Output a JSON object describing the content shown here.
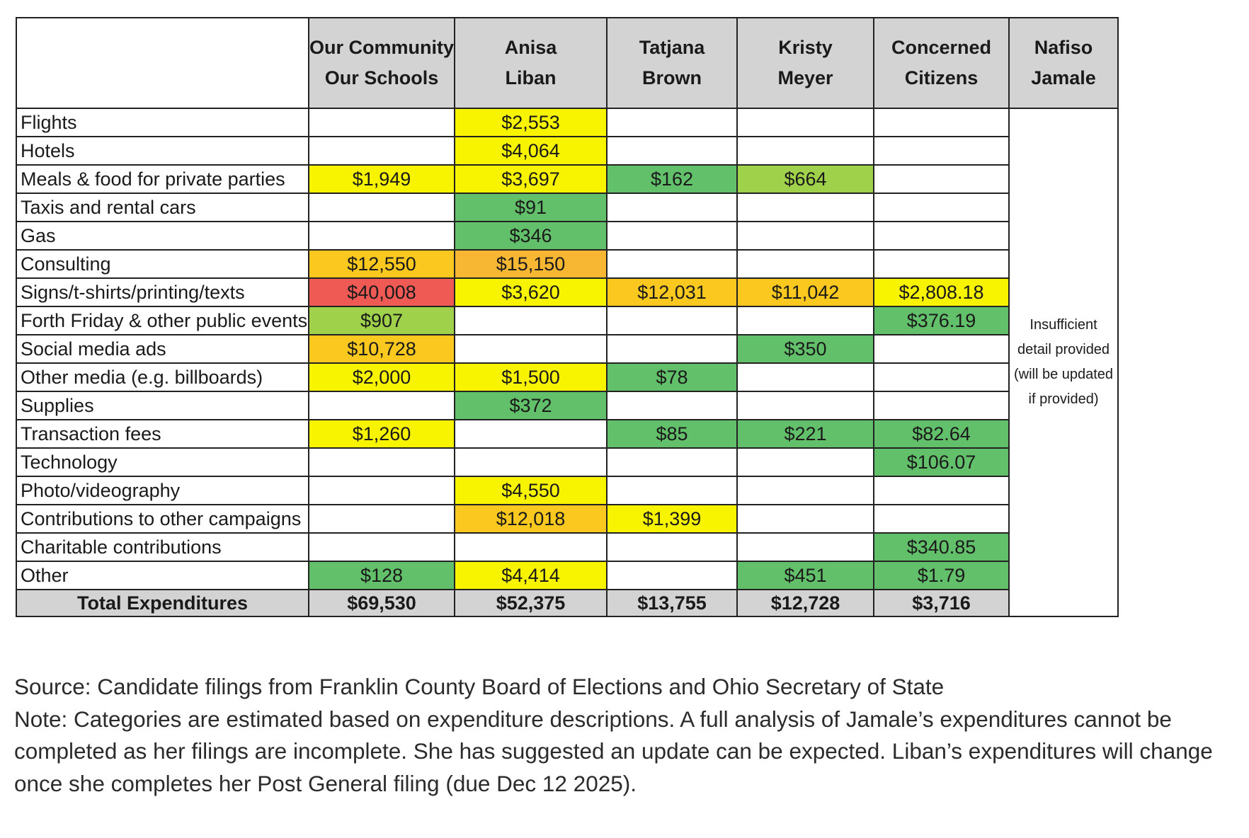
{
  "chart_data": {
    "type": "table",
    "title": "",
    "columns": [
      {
        "line1": "Our Community",
        "line2": "Our Schools"
      },
      {
        "line1": "Anisa",
        "line2": "Liban"
      },
      {
        "line1": "Tatjana",
        "line2": "Brown"
      },
      {
        "line1": "Kristy",
        "line2": "Meyer"
      },
      {
        "line1": "Concerned",
        "line2": "Citizens"
      },
      {
        "line1": "Nafiso",
        "line2": "Jamale"
      }
    ],
    "rows": [
      {
        "category": "Flights",
        "values": [
          "",
          "$2,553",
          "",
          "",
          ""
        ]
      },
      {
        "category": "Hotels",
        "values": [
          "",
          "$4,064",
          "",
          "",
          ""
        ]
      },
      {
        "category": "Meals & food for private parties",
        "values": [
          "$1,949",
          "$3,697",
          "$162",
          "$664",
          ""
        ]
      },
      {
        "category": "Taxis and rental cars",
        "values": [
          "",
          "$91",
          "",
          "",
          ""
        ]
      },
      {
        "category": "Gas",
        "values": [
          "",
          "$346",
          "",
          "",
          ""
        ]
      },
      {
        "category": "Consulting",
        "values": [
          "$12,550",
          "$15,150",
          "",
          "",
          ""
        ]
      },
      {
        "category": "Signs/t-shirts/printing/texts",
        "values": [
          "$40,008",
          "$3,620",
          "$12,031",
          "$11,042",
          "$2,808.18"
        ]
      },
      {
        "category": "Forth Friday & other public events",
        "values": [
          "$907",
          "",
          "",
          "",
          "$376.19"
        ]
      },
      {
        "category": "Social media ads",
        "values": [
          "$10,728",
          "",
          "",
          "$350",
          ""
        ]
      },
      {
        "category": "Other media (e.g. billboards)",
        "values": [
          "$2,000",
          "$1,500",
          "$78",
          "",
          ""
        ]
      },
      {
        "category": "Supplies",
        "values": [
          "",
          "$372",
          "",
          "",
          ""
        ]
      },
      {
        "category": "Transaction fees",
        "values": [
          "$1,260",
          "",
          "$85",
          "$221",
          "$82.64"
        ]
      },
      {
        "category": "Technology",
        "values": [
          "",
          "",
          "",
          "",
          "$106.07"
        ]
      },
      {
        "category": "Photo/videography",
        "values": [
          "",
          "$4,550",
          "",
          "",
          ""
        ]
      },
      {
        "category": "Contributions to other campaigns",
        "values": [
          "",
          "$12,018",
          "$1,399",
          "",
          ""
        ]
      },
      {
        "category": "Charitable contributions",
        "values": [
          "",
          "",
          "",
          "",
          "$340.85"
        ]
      },
      {
        "category": "Other",
        "values": [
          "$128",
          "$4,414",
          "",
          "$451",
          "$1.79"
        ]
      }
    ],
    "totals": {
      "label": "Total Expenditures",
      "values": [
        "$69,530",
        "$52,375",
        "$13,755",
        "$12,728",
        "$3,716"
      ]
    },
    "jamale_note": [
      "Insufficient",
      "detail provided",
      "(will be updated",
      "if provided)"
    ],
    "color_scale": {
      "stops": [
        {
          "min": 0,
          "max": 500,
          "color": "#62bf6a"
        },
        {
          "min": 500,
          "max": 1000,
          "color": "#9fd24a"
        },
        {
          "min": 1000,
          "max": 10000,
          "color": "#f8f400"
        },
        {
          "min": 10000,
          "max": 13000,
          "color": "#fac81e"
        },
        {
          "min": 13000,
          "max": 20000,
          "color": "#f7b732"
        },
        {
          "min": 20000,
          "max": 1000000,
          "color": "#f05a55"
        }
      ],
      "empty_color": "#ffffff",
      "total_color": "#d3d3d3"
    }
  },
  "caption": {
    "source": "Source: Candidate filings from Franklin County Board of Elections and Ohio Secretary of State",
    "note": "Note: Categories are estimated based on expenditure descriptions. A full analysis of Jamale’s expenditures cannot be completed as her filings are incomplete. She has suggested an update can be expected. Liban’s expenditures will change once she completes her Post General filing (due Dec 12 2025)."
  }
}
